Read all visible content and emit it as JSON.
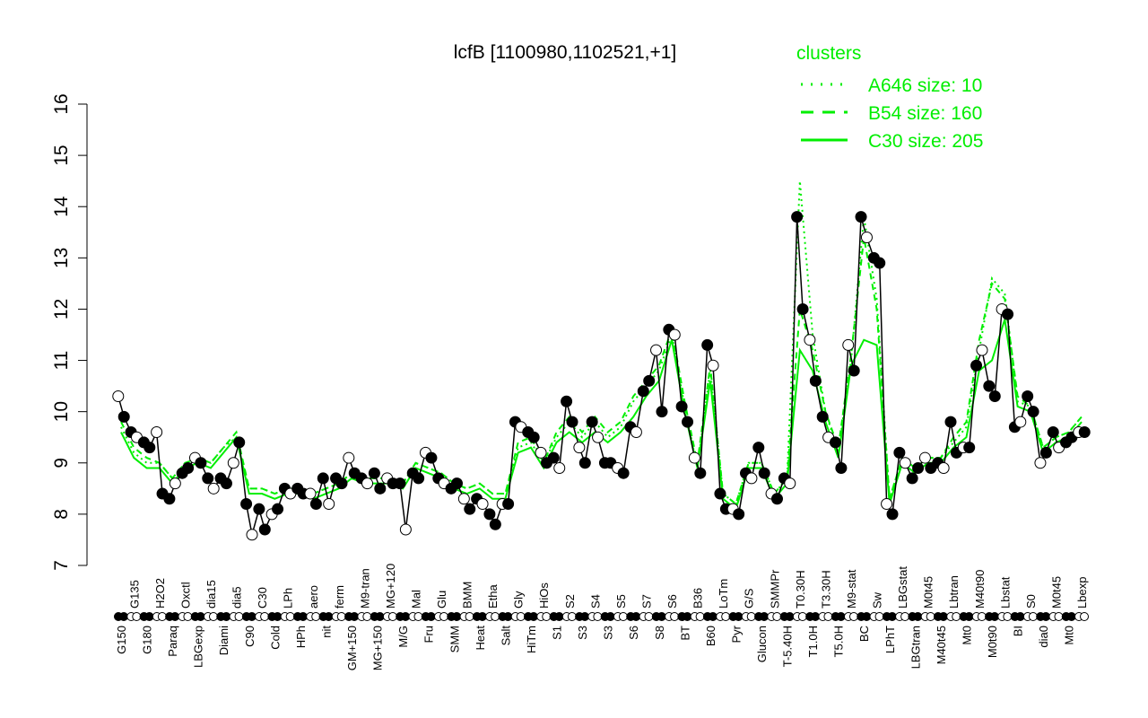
{
  "chart_data": {
    "type": "line",
    "title": "lcfB [1100980,1102521,+1]",
    "xlabel": "",
    "ylabel": "",
    "ylim": [
      7,
      16
    ],
    "yticks": [
      7,
      8,
      9,
      10,
      11,
      12,
      13,
      14,
      15,
      16
    ],
    "grid": false,
    "legend": {
      "title": "clusters",
      "placement": "top-right",
      "entries": [
        {
          "label": "A646 size: 10",
          "style": "dotted"
        },
        {
          "label": "B54 size: 160",
          "style": "dashed"
        },
        {
          "label": "C30 size: 205",
          "style": "solid"
        }
      ]
    },
    "colors": {
      "points": "#000000",
      "cluster": "#00ee00",
      "axis": "#000000"
    },
    "categories": [
      "G150",
      "G135",
      "G180",
      "H2O2",
      "Paraq",
      "Oxctl",
      "LBGexp",
      "dia15",
      "Diami",
      "dia5",
      "C90",
      "C30",
      "Cold",
      "LPh",
      "HPh",
      "aero",
      "nit",
      "ferm",
      "GM+150",
      "M9-tran",
      "MG+150",
      "MG+120",
      "M/G",
      "Mal",
      "Fru",
      "Glu",
      "SMM",
      "BMM",
      "Heat",
      "Etha",
      "Salt",
      "Gly",
      "HiTm",
      "HiOs",
      "S1",
      "S2",
      "S3",
      "S4",
      "S3",
      "S5",
      "S6",
      "S7",
      "S8",
      "S6",
      "BT",
      "B36",
      "B60",
      "LoTm",
      "Pyr",
      "G/S",
      "Glucon",
      "SMMPr",
      "T-5.40H",
      "T0.30H",
      "T1.0H",
      "T3.30H",
      "T5.0H",
      "M9-stat",
      "BC",
      "Sw",
      "LPhT",
      "LBGstat",
      "LBGtran",
      "M0t45",
      "M40t45",
      "Lbtran",
      "Mt0",
      "M40t90",
      "M0t90",
      "Lbstat",
      "BI",
      "S0",
      "dia0",
      "M0t45",
      "Mt0",
      "Lbexp"
    ],
    "series": [
      {
        "name": "samples",
        "values": [
          [
            10.3,
            9.9
          ],
          [
            9.6,
            9.5
          ],
          [
            9.4,
            9.3
          ],
          [
            9.6,
            8.4
          ],
          [
            8.3,
            8.6
          ],
          [
            8.8,
            8.9
          ],
          [
            9.1,
            9.0
          ],
          [
            8.7,
            8.5
          ],
          [
            8.7,
            8.6
          ],
          [
            9.0,
            9.4
          ],
          [
            8.2,
            7.6
          ],
          [
            8.1,
            7.7
          ],
          [
            8.0,
            8.1
          ],
          [
            8.5,
            8.4
          ],
          [
            8.5,
            8.4
          ],
          [
            8.4,
            8.2
          ],
          [
            8.7,
            8.2
          ],
          [
            8.7,
            8.6
          ],
          [
            9.1,
            8.8
          ],
          [
            8.7,
            8.6
          ],
          [
            8.8,
            8.5
          ],
          [
            8.7,
            8.6
          ],
          [
            8.6,
            7.7
          ],
          [
            8.8,
            8.7
          ],
          [
            9.2,
            9.1
          ],
          [
            8.7,
            8.6
          ],
          [
            8.5,
            8.6
          ],
          [
            8.3,
            8.1
          ],
          [
            8.3,
            8.2
          ],
          [
            8.0,
            7.8
          ],
          [
            8.2,
            8.2
          ],
          [
            9.8,
            9.7
          ],
          [
            9.6,
            9.5
          ],
          [
            9.2,
            9.0
          ],
          [
            9.1,
            8.9
          ],
          [
            10.2,
            9.8
          ],
          [
            9.3,
            9.0
          ],
          [
            9.8,
            9.5
          ],
          [
            9.0,
            9.0
          ],
          [
            8.9,
            8.8
          ],
          [
            9.7,
            9.6
          ],
          [
            10.4,
            10.6
          ],
          [
            11.2,
            10.0
          ],
          [
            11.6,
            11.5
          ],
          [
            10.1,
            9.8
          ],
          [
            9.1,
            8.8
          ],
          [
            11.3,
            10.9
          ],
          [
            8.4,
            8.1
          ],
          [
            8.1,
            8.0
          ],
          [
            8.8,
            8.7
          ],
          [
            9.3,
            8.8
          ],
          [
            8.4,
            8.3
          ],
          [
            8.7,
            8.6
          ],
          [
            13.8,
            12.0
          ],
          [
            11.4,
            10.6
          ],
          [
            9.9,
            9.5
          ],
          [
            9.4,
            8.9
          ],
          [
            11.3,
            10.8
          ],
          [
            13.8,
            13.4
          ],
          [
            13.0,
            12.9
          ],
          [
            8.2,
            8.0
          ],
          [
            9.2,
            9.0
          ],
          [
            8.7,
            8.9
          ],
          [
            9.1,
            8.9
          ],
          [
            9.0,
            8.9
          ],
          [
            9.8,
            9.2
          ],
          [
            9.3,
            9.3
          ],
          [
            10.9,
            11.2
          ],
          [
            10.5,
            10.3
          ],
          [
            12.0,
            11.9
          ],
          [
            9.7,
            9.8
          ],
          [
            10.3,
            10.0
          ],
          [
            9.0,
            9.2
          ],
          [
            9.6,
            9.3
          ],
          [
            9.4,
            9.5
          ],
          [
            9.6,
            9.6
          ]
        ]
      },
      {
        "name": "C30 size: 205",
        "values": [
          9.6,
          9.1,
          8.9,
          8.9,
          8.6,
          8.9,
          9.0,
          8.9,
          9.2,
          9.5,
          8.4,
          8.4,
          8.3,
          8.4,
          8.4,
          8.3,
          8.4,
          8.5,
          8.7,
          8.6,
          8.6,
          8.6,
          8.5,
          8.9,
          8.8,
          8.7,
          8.5,
          8.4,
          8.5,
          8.3,
          8.3,
          9.2,
          9.3,
          8.9,
          9.4,
          9.6,
          9.4,
          9.6,
          9.4,
          9.6,
          9.9,
          10.3,
          10.6,
          11.4,
          10.0,
          8.9,
          10.6,
          8.3,
          8.1,
          8.9,
          8.9,
          8.3,
          8.6,
          11.2,
          10.8,
          9.8,
          9.1,
          10.9,
          11.4,
          11.3,
          8.2,
          9.0,
          8.8,
          9.0,
          9.0,
          9.3,
          9.5,
          10.8,
          11.0,
          11.8,
          10.1,
          10.0,
          9.2,
          9.4,
          9.5,
          9.8
        ]
      },
      {
        "name": "B54 size: 160",
        "values": [
          9.8,
          9.3,
          9.1,
          9.0,
          8.7,
          9.0,
          9.1,
          9.0,
          9.3,
          9.6,
          8.5,
          8.5,
          8.4,
          8.5,
          8.5,
          8.4,
          8.5,
          8.6,
          8.8,
          8.7,
          8.7,
          8.7,
          8.6,
          9.0,
          8.9,
          8.8,
          8.6,
          8.5,
          8.6,
          8.4,
          8.4,
          9.4,
          9.5,
          9.0,
          9.6,
          9.9,
          9.6,
          9.9,
          9.6,
          9.8,
          10.3,
          10.6,
          10.9,
          11.6,
          10.2,
          9.0,
          10.9,
          8.4,
          8.2,
          9.0,
          9.0,
          8.4,
          8.7,
          12.0,
          11.2,
          10.0,
          9.3,
          11.1,
          13.4,
          12.0,
          8.3,
          9.1,
          8.9,
          9.1,
          9.1,
          9.5,
          9.8,
          11.4,
          12.5,
          12.2,
          10.3,
          10.1,
          9.3,
          9.5,
          9.6,
          9.9
        ]
      },
      {
        "name": "A646 size: 10",
        "values": [
          9.7,
          9.2,
          9.0,
          9.0,
          8.7,
          9.0,
          9.1,
          9.0,
          9.3,
          9.5,
          8.5,
          8.5,
          8.4,
          8.5,
          8.5,
          8.4,
          8.5,
          8.6,
          8.8,
          8.7,
          8.7,
          8.7,
          8.6,
          9.0,
          8.9,
          8.8,
          8.6,
          8.5,
          8.6,
          8.4,
          8.4,
          9.3,
          9.4,
          9.0,
          9.5,
          9.8,
          9.5,
          9.8,
          9.5,
          9.7,
          10.2,
          10.5,
          10.8,
          11.5,
          10.1,
          8.9,
          10.8,
          8.4,
          8.2,
          9.0,
          9.0,
          8.4,
          8.7,
          14.5,
          11.5,
          10.0,
          9.2,
          11.0,
          13.8,
          12.2,
          8.3,
          9.1,
          8.9,
          9.1,
          9.1,
          9.4,
          9.7,
          11.2,
          12.6,
          12.3,
          10.2,
          10.1,
          9.3,
          9.5,
          9.6,
          9.9
        ]
      }
    ]
  }
}
